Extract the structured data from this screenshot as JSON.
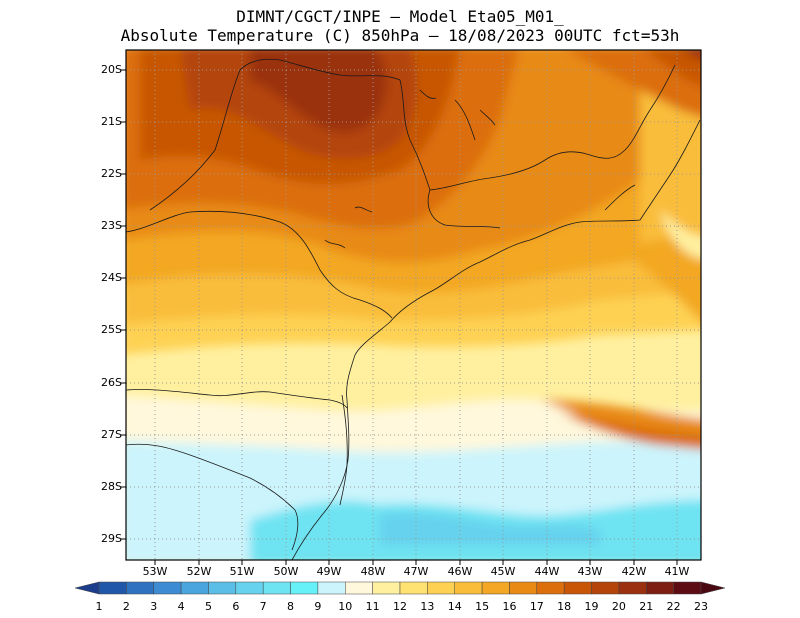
{
  "title_line1": "DIMNT/CGCT/INPE –  Model Eta05_M01_",
  "title_line2": "Absolute Temperature (C) 850hPa –  18/08/2023 00UTC fct=53h",
  "lat_labels": [
    "20S",
    "21S",
    "22S",
    "23S",
    "24S",
    "25S",
    "26S",
    "27S",
    "28S",
    "29S"
  ],
  "lon_labels": [
    "53W",
    "52W",
    "51W",
    "50W",
    "49W",
    "48W",
    "47W",
    "46W",
    "45W",
    "44W",
    "43W",
    "42W",
    "41W"
  ],
  "colorbar": {
    "labels": [
      "1",
      "2",
      "3",
      "4",
      "5",
      "6",
      "7",
      "8",
      "9",
      "10",
      "11",
      "12",
      "13",
      "14",
      "15",
      "16",
      "17",
      "18",
      "19",
      "20",
      "21",
      "22",
      "23"
    ],
    "colors": [
      "#1c3c8c",
      "#2157a8",
      "#2e72c0",
      "#3d8bd2",
      "#4aa5de",
      "#5abee6",
      "#66d2ee",
      "#6ee3f2",
      "#66f0f8",
      "#ccf4fc",
      "#fff8dc",
      "#fff0a0",
      "#ffe272",
      "#fed153",
      "#f9bd3a",
      "#f3a724",
      "#e88a14",
      "#dc6e0c",
      "#c85606",
      "#b4440a",
      "#9a3010",
      "#7e1e12",
      "#5e0c14",
      "#4a0810"
    ]
  }
}
